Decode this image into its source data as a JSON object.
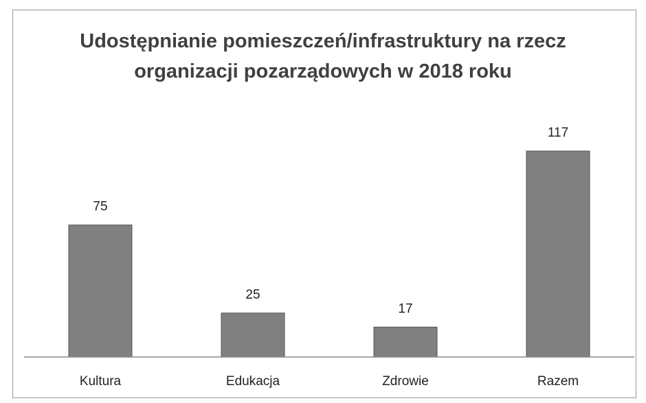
{
  "chart_data": {
    "type": "bar",
    "title": "Udostępnianie pomieszczeń/infrastruktury na rzecz organizacji pozarządowych w 2018 roku",
    "categories": [
      "Kultura",
      "Edukacja",
      "Zdrowie",
      "Razem"
    ],
    "values": [
      75,
      25,
      17,
      117
    ],
    "color": "#808080"
  }
}
